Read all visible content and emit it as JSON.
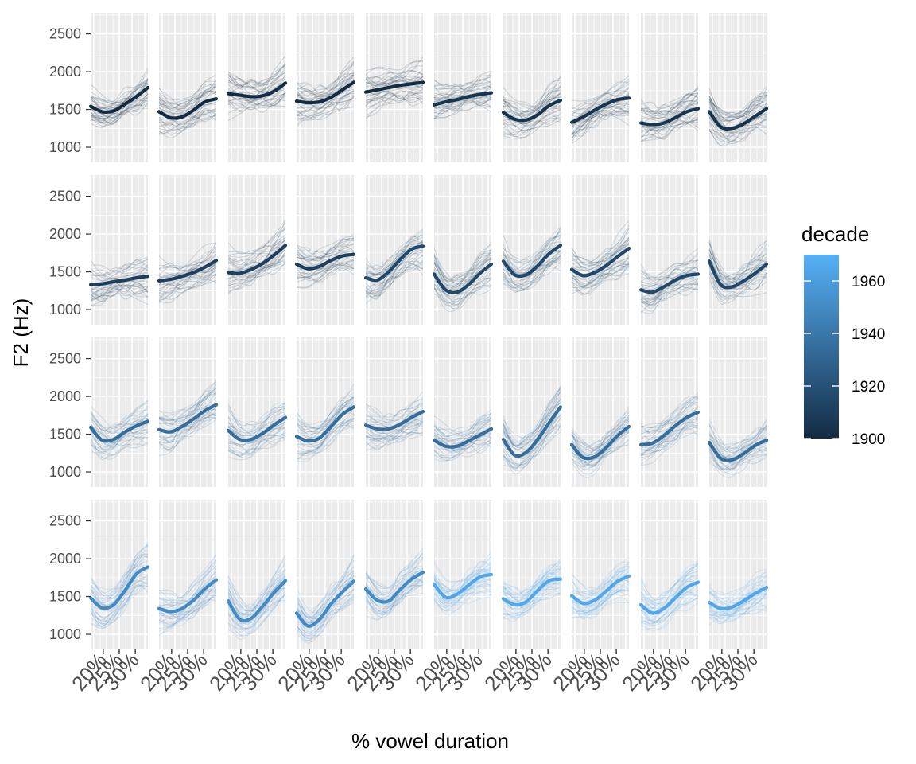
{
  "chart_data": {
    "type": "line",
    "xlabel": "% vowel duration",
    "ylabel": "F2 (Hz)",
    "ylim": [
      800,
      2780
    ],
    "y_ticks": [
      1000,
      1500,
      2000,
      2500
    ],
    "y_tick_labels": [
      "1000",
      "1500",
      "2000",
      "2500"
    ],
    "x_tick_labels": [
      "20%",
      "25%",
      "30%"
    ],
    "grid": true,
    "facet_rows": 4,
    "facet_cols": 10,
    "legend": {
      "title": "decade",
      "position": "right",
      "labels": [
        "1960",
        "1940",
        "1920",
        "1900"
      ],
      "range": [
        1900,
        1970
      ],
      "color_low": "#132B43",
      "color_high": "#56B1F7"
    },
    "panels": [
      {
        "row": 0,
        "col": 0,
        "decade": 1900,
        "y": [
          1540,
          1470,
          1480,
          1570,
          1670,
          1790
        ]
      },
      {
        "row": 0,
        "col": 1,
        "decade": 1900,
        "y": [
          1470,
          1390,
          1400,
          1490,
          1600,
          1640
        ]
      },
      {
        "row": 0,
        "col": 2,
        "decade": 1900,
        "y": [
          1710,
          1690,
          1670,
          1680,
          1740,
          1850
        ]
      },
      {
        "row": 0,
        "col": 3,
        "decade": 1900,
        "y": [
          1610,
          1590,
          1600,
          1660,
          1760,
          1860
        ]
      },
      {
        "row": 0,
        "col": 4,
        "decade": 1900,
        "y": [
          1730,
          1760,
          1790,
          1820,
          1840,
          1860
        ]
      },
      {
        "row": 0,
        "col": 5,
        "decade": 1905,
        "y": [
          1560,
          1600,
          1630,
          1670,
          1700,
          1720
        ]
      },
      {
        "row": 0,
        "col": 6,
        "decade": 1905,
        "y": [
          1460,
          1370,
          1360,
          1430,
          1550,
          1620
        ]
      },
      {
        "row": 0,
        "col": 7,
        "decade": 1905,
        "y": [
          1330,
          1400,
          1490,
          1570,
          1630,
          1650
        ]
      },
      {
        "row": 0,
        "col": 8,
        "decade": 1905,
        "y": [
          1320,
          1300,
          1320,
          1390,
          1470,
          1510
        ]
      },
      {
        "row": 0,
        "col": 9,
        "decade": 1905,
        "y": [
          1470,
          1270,
          1250,
          1310,
          1410,
          1510
        ]
      },
      {
        "row": 1,
        "col": 0,
        "decade": 1910,
        "y": [
          1330,
          1340,
          1370,
          1390,
          1420,
          1440
        ]
      },
      {
        "row": 1,
        "col": 1,
        "decade": 1910,
        "y": [
          1380,
          1400,
          1440,
          1490,
          1560,
          1650
        ]
      },
      {
        "row": 1,
        "col": 2,
        "decade": 1910,
        "y": [
          1490,
          1480,
          1530,
          1610,
          1720,
          1850
        ]
      },
      {
        "row": 1,
        "col": 3,
        "decade": 1910,
        "y": [
          1600,
          1540,
          1570,
          1650,
          1710,
          1730
        ]
      },
      {
        "row": 1,
        "col": 4,
        "decade": 1915,
        "y": [
          1420,
          1390,
          1500,
          1660,
          1800,
          1840
        ]
      },
      {
        "row": 1,
        "col": 5,
        "decade": 1915,
        "y": [
          1470,
          1260,
          1230,
          1330,
          1480,
          1600
        ]
      },
      {
        "row": 1,
        "col": 6,
        "decade": 1915,
        "y": [
          1640,
          1460,
          1460,
          1580,
          1740,
          1850
        ]
      },
      {
        "row": 1,
        "col": 7,
        "decade": 1915,
        "y": [
          1530,
          1450,
          1490,
          1580,
          1700,
          1810
        ]
      },
      {
        "row": 1,
        "col": 8,
        "decade": 1915,
        "y": [
          1260,
          1230,
          1300,
          1390,
          1450,
          1470
        ]
      },
      {
        "row": 1,
        "col": 9,
        "decade": 1915,
        "y": [
          1640,
          1330,
          1300,
          1380,
          1480,
          1600
        ]
      },
      {
        "row": 2,
        "col": 0,
        "decade": 1935,
        "y": [
          1590,
          1420,
          1430,
          1530,
          1610,
          1670
        ]
      },
      {
        "row": 2,
        "col": 1,
        "decade": 1935,
        "y": [
          1560,
          1530,
          1600,
          1700,
          1810,
          1890
        ]
      },
      {
        "row": 2,
        "col": 2,
        "decade": 1935,
        "y": [
          1550,
          1430,
          1430,
          1510,
          1620,
          1720
        ]
      },
      {
        "row": 2,
        "col": 3,
        "decade": 1935,
        "y": [
          1470,
          1410,
          1450,
          1600,
          1760,
          1860
        ]
      },
      {
        "row": 2,
        "col": 4,
        "decade": 1935,
        "y": [
          1620,
          1570,
          1570,
          1630,
          1720,
          1800
        ]
      },
      {
        "row": 2,
        "col": 5,
        "decade": 1935,
        "y": [
          1420,
          1340,
          1340,
          1410,
          1490,
          1570
        ]
      },
      {
        "row": 2,
        "col": 6,
        "decade": 1935,
        "y": [
          1430,
          1220,
          1260,
          1430,
          1650,
          1860
        ]
      },
      {
        "row": 2,
        "col": 7,
        "decade": 1935,
        "y": [
          1360,
          1190,
          1200,
          1320,
          1480,
          1600
        ]
      },
      {
        "row": 2,
        "col": 8,
        "decade": 1935,
        "y": [
          1360,
          1380,
          1480,
          1610,
          1720,
          1790
        ]
      },
      {
        "row": 2,
        "col": 9,
        "decade": 1935,
        "y": [
          1390,
          1180,
          1160,
          1240,
          1350,
          1420
        ]
      },
      {
        "row": 3,
        "col": 0,
        "decade": 1950,
        "y": [
          1480,
          1350,
          1390,
          1580,
          1800,
          1890
        ]
      },
      {
        "row": 3,
        "col": 1,
        "decade": 1950,
        "y": [
          1340,
          1300,
          1340,
          1450,
          1600,
          1720
        ]
      },
      {
        "row": 3,
        "col": 2,
        "decade": 1950,
        "y": [
          1440,
          1200,
          1210,
          1370,
          1550,
          1710
        ]
      },
      {
        "row": 3,
        "col": 3,
        "decade": 1950,
        "y": [
          1280,
          1110,
          1200,
          1400,
          1560,
          1700
        ]
      },
      {
        "row": 3,
        "col": 4,
        "decade": 1950,
        "y": [
          1600,
          1450,
          1440,
          1590,
          1730,
          1820
        ]
      },
      {
        "row": 3,
        "col": 5,
        "decade": 1965,
        "y": [
          1660,
          1490,
          1530,
          1650,
          1760,
          1790
        ]
      },
      {
        "row": 3,
        "col": 6,
        "decade": 1965,
        "y": [
          1470,
          1390,
          1430,
          1580,
          1710,
          1730
        ]
      },
      {
        "row": 3,
        "col": 7,
        "decade": 1965,
        "y": [
          1510,
          1410,
          1450,
          1570,
          1700,
          1770
        ]
      },
      {
        "row": 3,
        "col": 8,
        "decade": 1965,
        "y": [
          1390,
          1280,
          1340,
          1480,
          1620,
          1690
        ]
      },
      {
        "row": 3,
        "col": 9,
        "decade": 1965,
        "y": [
          1420,
          1340,
          1360,
          1440,
          1540,
          1620
        ]
      }
    ]
  }
}
